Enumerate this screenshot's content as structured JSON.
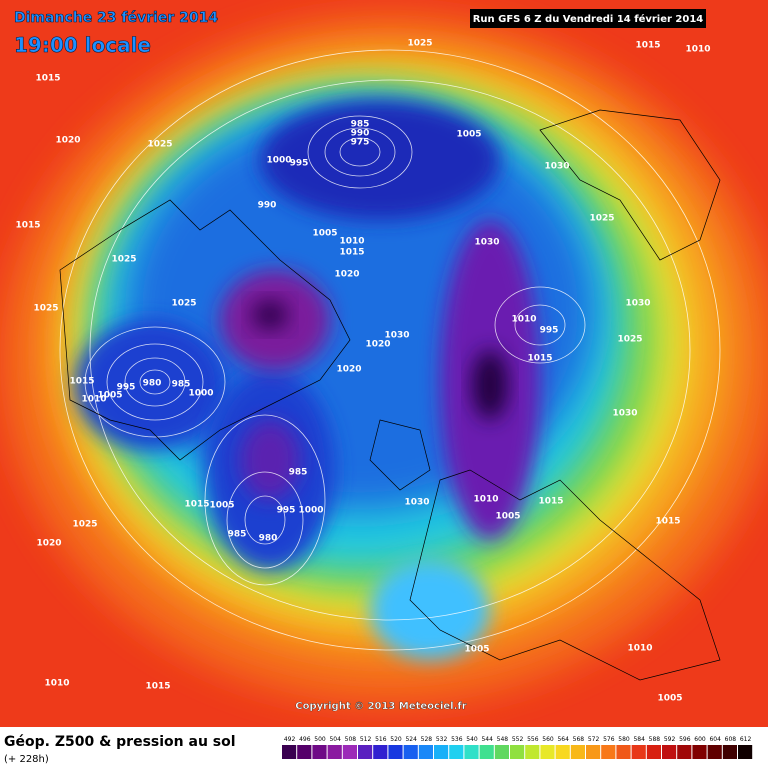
{
  "header": {
    "date": "Dimanche 23 février 2014",
    "time": "19:00 locale",
    "run": "Run GFS 6 Z du Vendredi 14 février 2014"
  },
  "map": {
    "pressure_labels": [
      1025,
      1015,
      1010,
      1015,
      1020,
      1025,
      985,
      990,
      975,
      1005,
      1000,
      995,
      1030,
      990,
      1005,
      1010,
      1015,
      1030,
      1025,
      1015,
      1025,
      1020,
      1025,
      1025,
      1030,
      1010,
      995,
      1030,
      1020,
      1025,
      1015,
      1020,
      980,
      985,
      1000,
      995,
      1005,
      1015,
      1010,
      1030,
      985,
      1015,
      1005,
      995,
      1000,
      1030,
      1010,
      1005,
      1015,
      1015,
      1025,
      985,
      980,
      1020,
      1005,
      1010,
      1010,
      1015,
      1005
    ],
    "copyright": "Copyright © 2013 Meteociel.fr"
  },
  "footer": {
    "title": "Géop. Z500 & pression au sol",
    "lead": "(+ 228h)",
    "scale": [
      492,
      496,
      500,
      504,
      508,
      512,
      516,
      520,
      524,
      528,
      532,
      536,
      540,
      544,
      548,
      552,
      556,
      560,
      564,
      568,
      572,
      576,
      580,
      584,
      588,
      592,
      596,
      600,
      604,
      608,
      612
    ]
  }
}
